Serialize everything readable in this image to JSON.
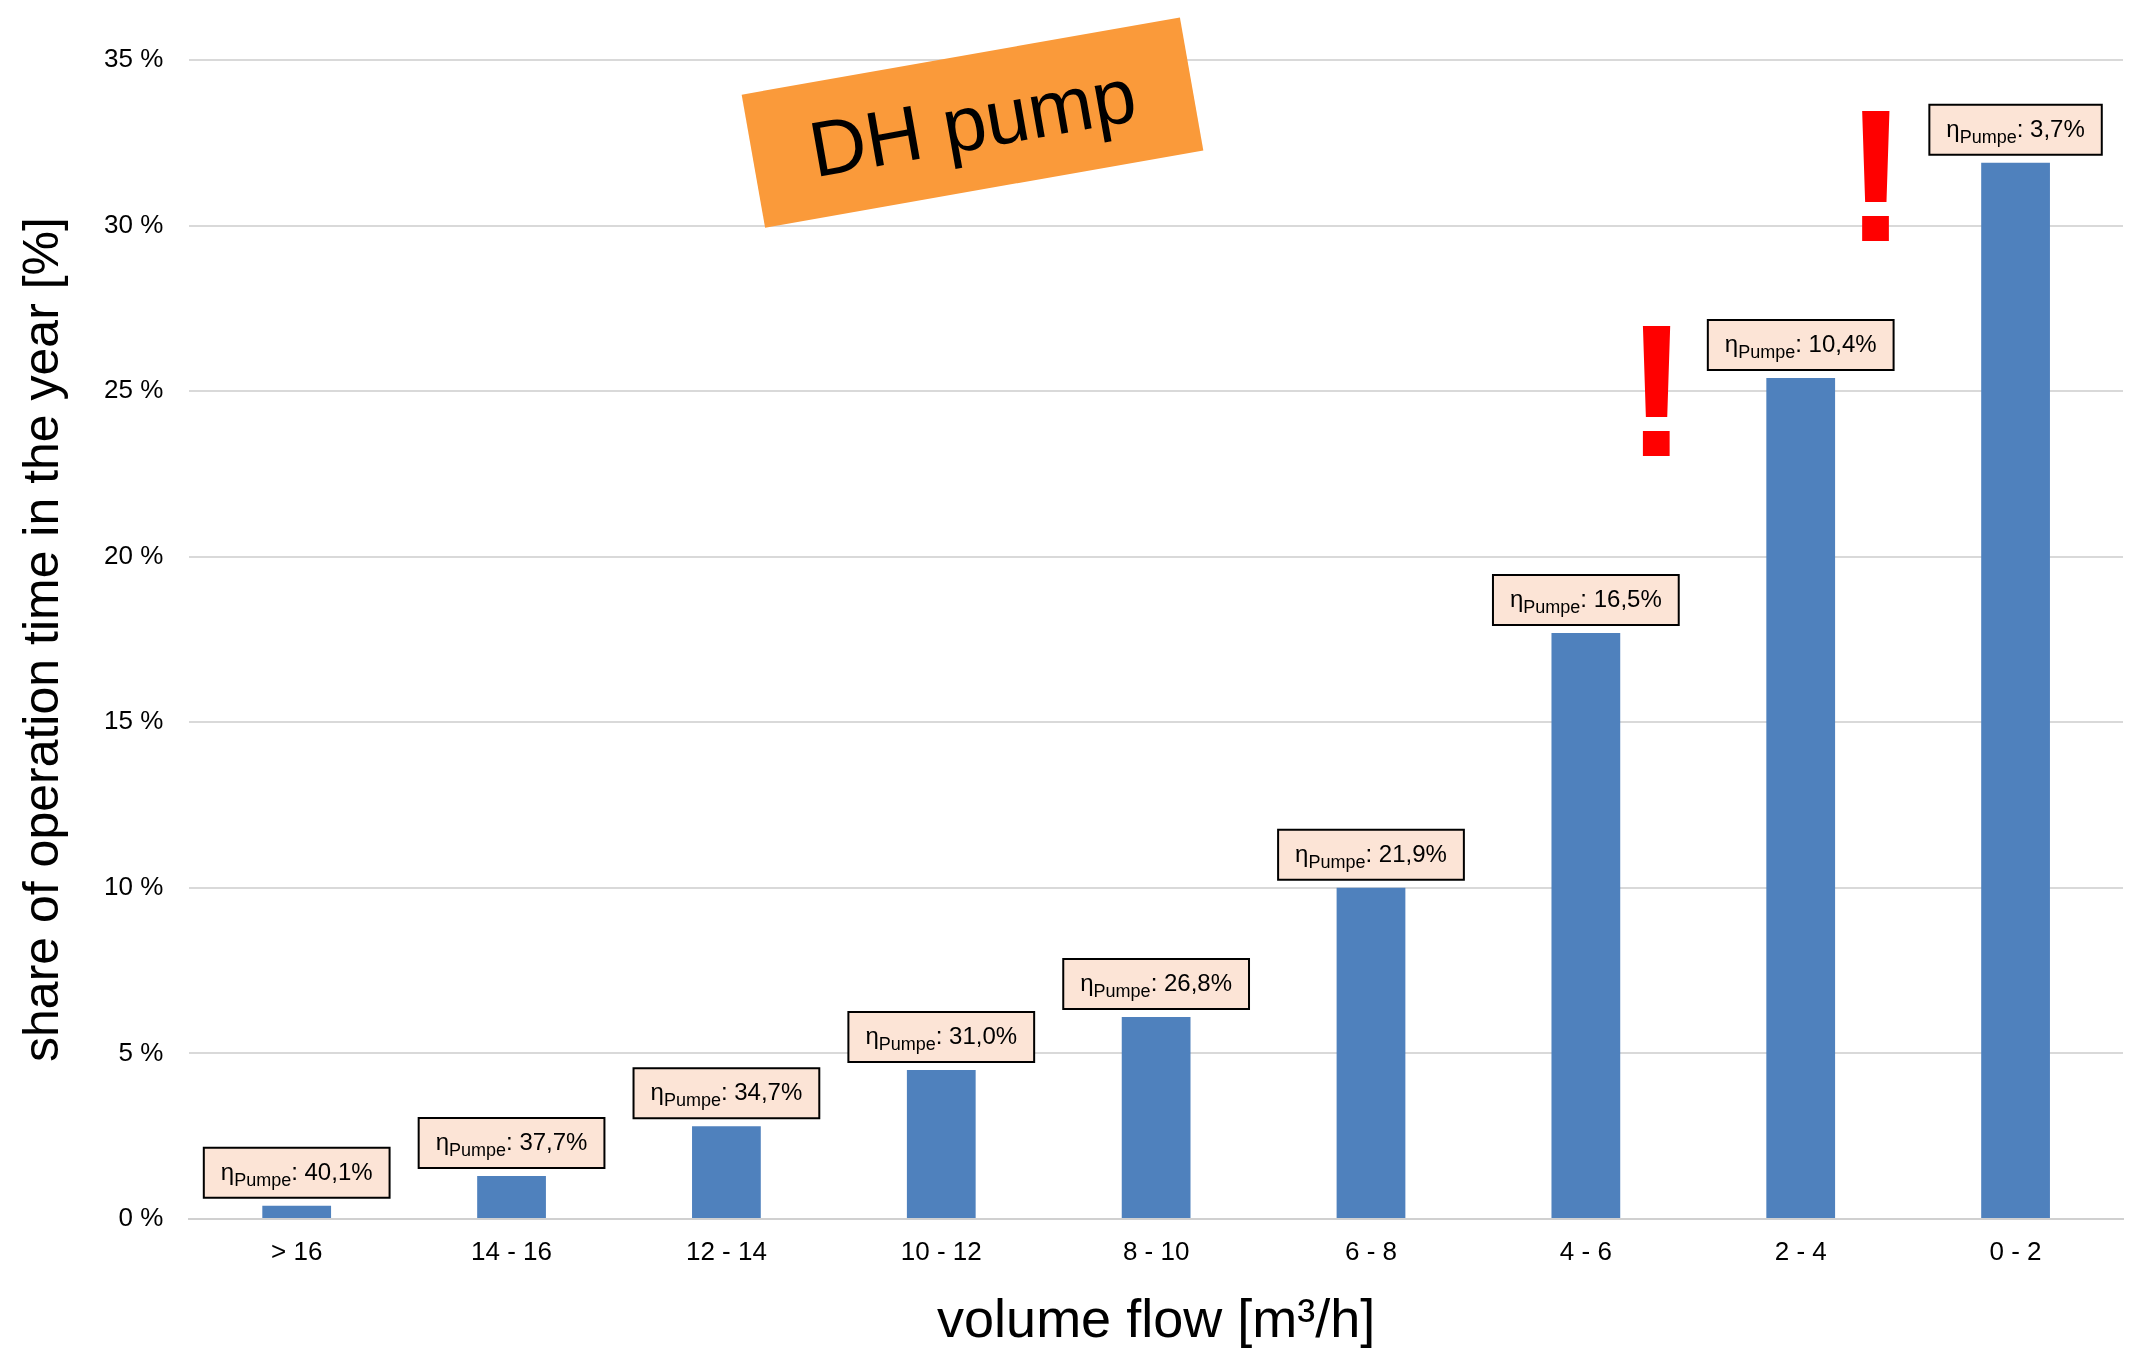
{
  "chart_data": {
    "type": "bar",
    "title": "DH pump",
    "categories": [
      "> 16",
      "14 - 16",
      "12 - 14",
      "10 - 12",
      "8 - 10",
      "6 - 8",
      "4 - 6",
      "2 - 4",
      "0 - 2"
    ],
    "values": [
      0.4,
      1.3,
      2.8,
      4.5,
      6.1,
      10.0,
      17.7,
      25.4,
      31.9
    ],
    "color": "#4f81bd",
    "ylim": [
      0,
      35
    ],
    "yticks": [
      {
        "value": 0,
        "label": "0 %"
      },
      {
        "value": 5,
        "label": "5 %"
      },
      {
        "value": 10,
        "label": "10 %"
      },
      {
        "value": 15,
        "label": "15 %"
      },
      {
        "value": 20,
        "label": "20 %"
      },
      {
        "value": 25,
        "label": "25 %"
      },
      {
        "value": 30,
        "label": "30 %"
      },
      {
        "value": 35,
        "label": "35 %"
      }
    ],
    "xlabel": "volume flow [m³/h]",
    "ylabel": "share of operation time in the year [%]",
    "grid": "y",
    "legend": false,
    "annotations": [
      {
        "text": "η$_{Pumpe}$: 40,1%",
        "x": "> 16",
        "y": 0.4
      },
      {
        "text": "η$_{Pumpe}$: 37,7%",
        "x": "14 - 16",
        "y": 1.3
      },
      {
        "text": "η$_{Pumpe}$: 34,7%",
        "x": "12 - 14",
        "y": 2.8
      },
      {
        "text": "η$_{Pumpe}$: 31,0%",
        "x": "10 - 12",
        "y": 4.5
      },
      {
        "text": "η$_{Pumpe}$: 26,8%",
        "x": "8 - 10",
        "y": 6.1
      },
      {
        "text": "η$_{Pumpe}$: 21,9%",
        "x": "6 - 8",
        "y": 10.0
      },
      {
        "text": "η$_{Pumpe}$: 16,5%",
        "x": "4 - 6",
        "y": 17.7
      },
      {
        "text": "η$_{Pumpe}$: 10,4%",
        "x": "2 - 4",
        "y": 25.4
      },
      {
        "text": "η$_{Pumpe}$: 3,7%",
        "x": "0 - 2",
        "y": 31.9
      },
      "!",
      "!"
    ]
  }
}
